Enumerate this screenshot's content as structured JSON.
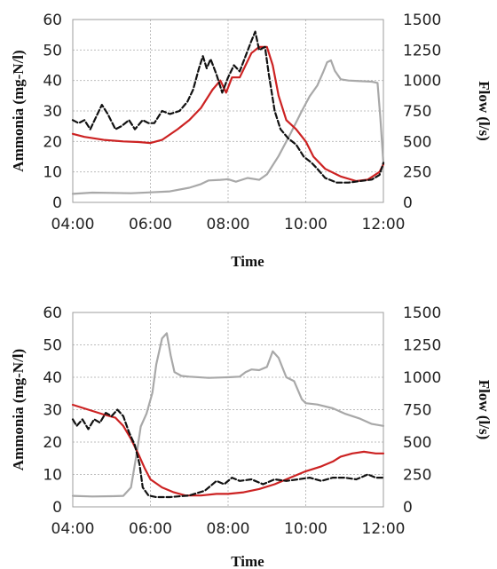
{
  "chart_data": [
    {
      "type": "line",
      "title": "",
      "xlabel": "Time",
      "ylabel": "Ammonia (mg-N/l)",
      "y2label": "Flow (l/s)",
      "x_ticks": [
        "04:00",
        "06:00",
        "08:00",
        "10:00",
        "12:00"
      ],
      "y_ticks": [
        "0",
        "10",
        "20",
        "30",
        "40",
        "50",
        "60"
      ],
      "y2_ticks": [
        "0",
        "250",
        "500",
        "750",
        "1000",
        "1250",
        "1500"
      ],
      "xlim": [
        4,
        12
      ],
      "ylim": [
        0,
        60
      ],
      "y2lim": [
        0,
        1500
      ],
      "grid": true,
      "series": [
        {
          "axis": "right",
          "color": "#a8a8a8",
          "style": "solid",
          "points": [
            [
              4.0,
              70
            ],
            [
              4.5,
              80
            ],
            [
              5.0,
              78
            ],
            [
              5.5,
              75
            ],
            [
              6.0,
              82
            ],
            [
              6.5,
              90
            ],
            [
              7.0,
              120
            ],
            [
              7.3,
              150
            ],
            [
              7.5,
              180
            ],
            [
              7.8,
              185
            ],
            [
              8.0,
              190
            ],
            [
              8.2,
              170
            ],
            [
              8.5,
              200
            ],
            [
              8.8,
              185
            ],
            [
              9.0,
              230
            ],
            [
              9.3,
              380
            ],
            [
              9.6,
              560
            ],
            [
              9.9,
              750
            ],
            [
              10.1,
              870
            ],
            [
              10.3,
              960
            ],
            [
              10.45,
              1070
            ],
            [
              10.55,
              1150
            ],
            [
              10.65,
              1165
            ],
            [
              10.75,
              1080
            ],
            [
              10.9,
              1010
            ],
            [
              11.1,
              1000
            ],
            [
              11.4,
              995
            ],
            [
              11.7,
              990
            ],
            [
              11.85,
              980
            ],
            [
              11.92,
              700
            ],
            [
              12.0,
              320
            ]
          ]
        },
        {
          "axis": "left",
          "color": "#cc2222",
          "style": "solid",
          "points": [
            [
              4.0,
              22.5
            ],
            [
              4.3,
              21.5
            ],
            [
              4.8,
              20.5
            ],
            [
              5.3,
              20.0
            ],
            [
              5.7,
              19.8
            ],
            [
              6.0,
              19.5
            ],
            [
              6.3,
              20.5
            ],
            [
              6.7,
              24
            ],
            [
              7.0,
              27
            ],
            [
              7.3,
              31
            ],
            [
              7.6,
              37
            ],
            [
              7.8,
              40
            ],
            [
              7.95,
              36
            ],
            [
              8.1,
              41
            ],
            [
              8.3,
              41
            ],
            [
              8.45,
              45
            ],
            [
              8.6,
              49
            ],
            [
              8.8,
              51
            ],
            [
              9.0,
              51
            ],
            [
              9.15,
              45
            ],
            [
              9.3,
              35
            ],
            [
              9.5,
              27
            ],
            [
              9.75,
              24
            ],
            [
              10.0,
              20
            ],
            [
              10.2,
              15
            ],
            [
              10.5,
              11
            ],
            [
              10.9,
              8.5
            ],
            [
              11.3,
              7
            ],
            [
              11.6,
              7.5
            ],
            [
              11.9,
              10
            ],
            [
              12.0,
              12.5
            ]
          ]
        },
        {
          "axis": "left",
          "color": "#111111",
          "style": "dashed",
          "points": [
            [
              4.0,
              27
            ],
            [
              4.15,
              26
            ],
            [
              4.3,
              27
            ],
            [
              4.45,
              24
            ],
            [
              4.6,
              28
            ],
            [
              4.75,
              32
            ],
            [
              4.9,
              29
            ],
            [
              5.1,
              24
            ],
            [
              5.25,
              25
            ],
            [
              5.45,
              27
            ],
            [
              5.6,
              24
            ],
            [
              5.8,
              27
            ],
            [
              5.95,
              26
            ],
            [
              6.1,
              26
            ],
            [
              6.3,
              30
            ],
            [
              6.5,
              29
            ],
            [
              6.75,
              30
            ],
            [
              6.95,
              33
            ],
            [
              7.1,
              37
            ],
            [
              7.25,
              44
            ],
            [
              7.35,
              48
            ],
            [
              7.45,
              44
            ],
            [
              7.55,
              47
            ],
            [
              7.7,
              42
            ],
            [
              7.85,
              36
            ],
            [
              8.0,
              41
            ],
            [
              8.15,
              45
            ],
            [
              8.3,
              43
            ],
            [
              8.45,
              48
            ],
            [
              8.6,
              53
            ],
            [
              8.7,
              56
            ],
            [
              8.8,
              50
            ],
            [
              8.95,
              51
            ],
            [
              9.05,
              42
            ],
            [
              9.2,
              30
            ],
            [
              9.35,
              24
            ],
            [
              9.55,
              21
            ],
            [
              9.75,
              19
            ],
            [
              9.95,
              15
            ],
            [
              10.15,
              13
            ],
            [
              10.3,
              11
            ],
            [
              10.5,
              8
            ],
            [
              10.8,
              6.5
            ],
            [
              11.1,
              6.5
            ],
            [
              11.4,
              7
            ],
            [
              11.7,
              7.5
            ],
            [
              11.9,
              9
            ],
            [
              12.0,
              13
            ]
          ]
        }
      ]
    },
    {
      "type": "line",
      "title": "",
      "xlabel": "Time",
      "ylabel": "Ammonia (mg-N/l)",
      "y2label": "Flow (l/s)",
      "x_ticks": [
        "04:00",
        "06:00",
        "08:00",
        "10:00",
        "12:00"
      ],
      "y_ticks": [
        "0",
        "10",
        "20",
        "30",
        "40",
        "50",
        "60"
      ],
      "y2_ticks": [
        "0",
        "250",
        "500",
        "750",
        "1000",
        "1250",
        "1500"
      ],
      "xlim": [
        4,
        12
      ],
      "ylim": [
        0,
        60
      ],
      "y2lim": [
        0,
        1500
      ],
      "grid": true,
      "series": [
        {
          "axis": "right",
          "color": "#a8a8a8",
          "style": "solid",
          "points": [
            [
              4.0,
              85
            ],
            [
              4.5,
              80
            ],
            [
              5.0,
              82
            ],
            [
              5.3,
              85
            ],
            [
              5.5,
              150
            ],
            [
              5.65,
              420
            ],
            [
              5.75,
              620
            ],
            [
              5.9,
              720
            ],
            [
              6.05,
              880
            ],
            [
              6.15,
              1100
            ],
            [
              6.3,
              1300
            ],
            [
              6.42,
              1340
            ],
            [
              6.52,
              1170
            ],
            [
              6.62,
              1040
            ],
            [
              6.8,
              1010
            ],
            [
              7.0,
              1005
            ],
            [
              7.5,
              995
            ],
            [
              8.0,
              1000
            ],
            [
              8.3,
              1005
            ],
            [
              8.45,
              1040
            ],
            [
              8.6,
              1060
            ],
            [
              8.8,
              1055
            ],
            [
              9.0,
              1080
            ],
            [
              9.15,
              1200
            ],
            [
              9.3,
              1150
            ],
            [
              9.5,
              1000
            ],
            [
              9.7,
              970
            ],
            [
              9.9,
              830
            ],
            [
              10.0,
              800
            ],
            [
              10.3,
              790
            ],
            [
              10.7,
              760
            ],
            [
              11.0,
              720
            ],
            [
              11.4,
              680
            ],
            [
              11.7,
              640
            ],
            [
              12.0,
              625
            ]
          ]
        },
        {
          "axis": "left",
          "color": "#cc2222",
          "style": "solid",
          "points": [
            [
              4.0,
              31.5
            ],
            [
              4.4,
              30
            ],
            [
              4.8,
              28.5
            ],
            [
              5.1,
              27.5
            ],
            [
              5.3,
              25
            ],
            [
              5.5,
              21
            ],
            [
              5.7,
              16
            ],
            [
              5.85,
              12
            ],
            [
              6.0,
              8.5
            ],
            [
              6.3,
              6
            ],
            [
              6.6,
              4.5
            ],
            [
              6.9,
              3.5
            ],
            [
              7.3,
              3.5
            ],
            [
              7.7,
              4
            ],
            [
              8.0,
              4
            ],
            [
              8.4,
              4.5
            ],
            [
              8.8,
              5.5
            ],
            [
              9.2,
              7
            ],
            [
              9.6,
              9
            ],
            [
              10.0,
              11
            ],
            [
              10.4,
              12.5
            ],
            [
              10.7,
              14
            ],
            [
              10.9,
              15.5
            ],
            [
              11.2,
              16.5
            ],
            [
              11.5,
              17
            ],
            [
              11.8,
              16.5
            ],
            [
              12.0,
              16.5
            ]
          ]
        },
        {
          "axis": "left",
          "color": "#111111",
          "style": "dashed",
          "points": [
            [
              4.0,
              27
            ],
            [
              4.1,
              25
            ],
            [
              4.25,
              27
            ],
            [
              4.4,
              24
            ],
            [
              4.55,
              27
            ],
            [
              4.7,
              26
            ],
            [
              4.85,
              29
            ],
            [
              5.0,
              28
            ],
            [
              5.15,
              30
            ],
            [
              5.3,
              28
            ],
            [
              5.45,
              23
            ],
            [
              5.6,
              19
            ],
            [
              5.72,
              13
            ],
            [
              5.8,
              6
            ],
            [
              5.95,
              3.5
            ],
            [
              6.15,
              3
            ],
            [
              6.5,
              3
            ],
            [
              7.0,
              3.5
            ],
            [
              7.4,
              5
            ],
            [
              7.7,
              8
            ],
            [
              7.9,
              7
            ],
            [
              8.1,
              9
            ],
            [
              8.3,
              8
            ],
            [
              8.6,
              8.5
            ],
            [
              8.9,
              7
            ],
            [
              9.2,
              8.5
            ],
            [
              9.5,
              8
            ],
            [
              9.8,
              8.5
            ],
            [
              10.1,
              9
            ],
            [
              10.4,
              8
            ],
            [
              10.7,
              9
            ],
            [
              11.0,
              9
            ],
            [
              11.3,
              8.5
            ],
            [
              11.6,
              10
            ],
            [
              11.8,
              9
            ],
            [
              12.0,
              9
            ]
          ]
        }
      ]
    }
  ]
}
